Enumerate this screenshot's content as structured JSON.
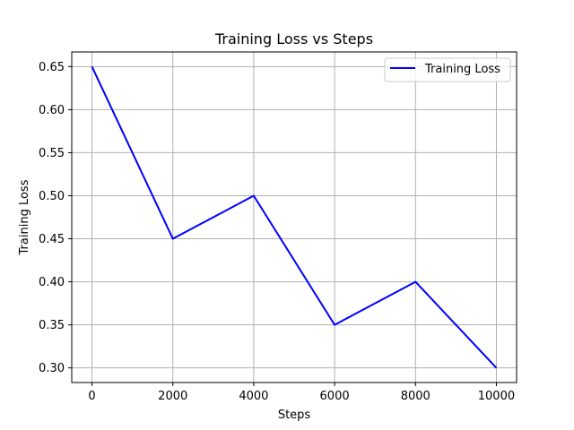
{
  "chart_data": {
    "type": "line",
    "title": "Training Loss vs Steps",
    "xlabel": "Steps",
    "ylabel": "Training Loss",
    "xlim": [
      -500,
      10500
    ],
    "ylim": [
      0.283,
      0.667
    ],
    "xticks": [
      0,
      2000,
      4000,
      6000,
      8000,
      10000
    ],
    "yticks": [
      0.3,
      0.35,
      0.4,
      0.45,
      0.5,
      0.55,
      0.6,
      0.65
    ],
    "xtick_labels": [
      "0",
      "2000",
      "4000",
      "6000",
      "8000",
      "10000"
    ],
    "ytick_labels": [
      "0.30",
      "0.35",
      "0.40",
      "0.45",
      "0.50",
      "0.55",
      "0.60",
      "0.65"
    ],
    "grid": true,
    "legend_position": "top-right",
    "series": [
      {
        "name": "Training Loss",
        "color": "#0000ff",
        "x": [
          0,
          2000,
          4000,
          6000,
          8000,
          10000
        ],
        "y": [
          0.65,
          0.45,
          0.5,
          0.35,
          0.4,
          0.3
        ]
      }
    ]
  }
}
